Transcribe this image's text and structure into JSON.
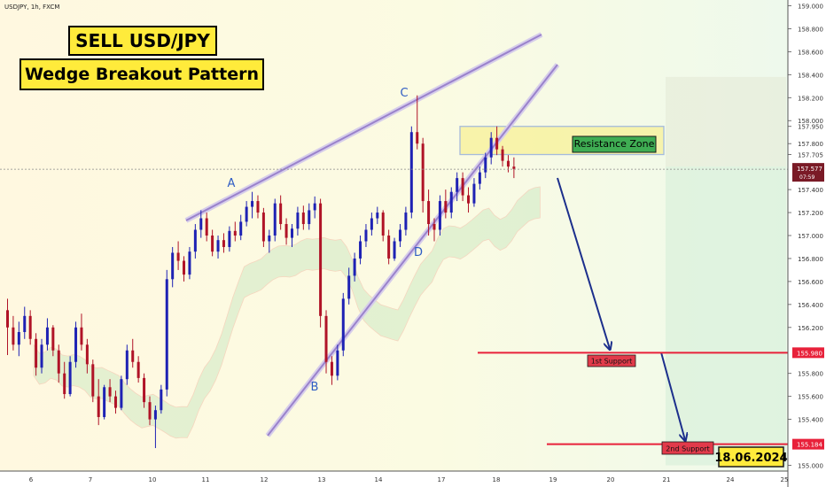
{
  "header": {
    "symbol_info": "USDJPY, 1h, FXCM"
  },
  "labels": {
    "title": "SELL USD/JPY",
    "subtitle": "Wedge Breakout Pattern",
    "resistance": "Resistance Zone",
    "support1": "1st Support",
    "support2": "2nd Support",
    "date": "18.06.2024",
    "point_a": "A",
    "point_b": "B",
    "point_c": "C",
    "point_d": "D"
  },
  "colors": {
    "bull": "#1e22b4",
    "bear": "#b01327",
    "support_line": "#e8213a",
    "wedge_line": "#9a82cc",
    "arrow": "#1c2f8c",
    "point_label": "#2e5cc4",
    "current_price_bg": "#7a1a26"
  },
  "chart_data": {
    "type": "candlestick",
    "title": "SELL USD/JPY",
    "subtitle": "Wedge Breakout Pattern",
    "x_tick_labels": [
      "6",
      "7",
      "10",
      "11",
      "12",
      "13",
      "14",
      "17",
      "18",
      "19",
      "20",
      "21",
      "24",
      "25"
    ],
    "y_tick_labels": [
      "159.000",
      "158.800",
      "158.600",
      "158.400",
      "158.200",
      "158.000",
      "157.950",
      "157.800",
      "157.705",
      "157.400",
      "157.200",
      "157.000",
      "156.800",
      "156.600",
      "156.400",
      "156.200",
      "155.800",
      "155.600",
      "155.400",
      "155.000"
    ],
    "ylim": [
      154.95,
      159.05
    ],
    "current_price": {
      "value": "157.577",
      "countdown": "07:59"
    },
    "resistance_zone": {
      "low": 157.705,
      "high": 157.95,
      "label": "Resistance Zone"
    },
    "supports": [
      {
        "label": "1st Support",
        "value": 155.98
      },
      {
        "label": "2nd Support",
        "value": 155.184
      }
    ],
    "wedge_points": [
      {
        "label": "A",
        "value": 157.42
      },
      {
        "label": "B",
        "value": 155.72
      },
      {
        "label": "C",
        "value": 158.22
      },
      {
        "label": "D",
        "value": 156.95
      }
    ],
    "bars": [
      [
        156.35,
        156.45,
        155.96,
        156.2
      ],
      [
        156.2,
        156.3,
        156.0,
        156.05
      ],
      [
        156.05,
        156.25,
        155.95,
        156.16
      ],
      [
        156.16,
        156.38,
        156.1,
        156.3
      ],
      [
        156.3,
        156.35,
        156.05,
        156.1
      ],
      [
        156.1,
        156.15,
        155.78,
        155.85
      ],
      [
        155.85,
        156.1,
        155.8,
        156.05
      ],
      [
        156.05,
        156.28,
        156.0,
        156.2
      ],
      [
        156.2,
        156.22,
        155.95,
        156.0
      ],
      [
        156.0,
        156.05,
        155.72,
        155.8
      ],
      [
        155.8,
        155.9,
        155.58,
        155.62
      ],
      [
        155.62,
        155.95,
        155.6,
        155.9
      ],
      [
        155.9,
        156.25,
        155.85,
        156.2
      ],
      [
        156.2,
        156.32,
        156.0,
        156.05
      ],
      [
        156.05,
        156.1,
        155.8,
        155.88
      ],
      [
        155.88,
        155.92,
        155.55,
        155.6
      ],
      [
        155.6,
        155.75,
        155.35,
        155.42
      ],
      [
        155.42,
        155.7,
        155.4,
        155.68
      ],
      [
        155.68,
        155.75,
        155.55,
        155.6
      ],
      [
        155.6,
        155.65,
        155.45,
        155.5
      ],
      [
        155.5,
        155.78,
        155.48,
        155.75
      ],
      [
        155.75,
        156.05,
        155.7,
        156.0
      ],
      [
        156.0,
        156.1,
        155.85,
        155.9
      ],
      [
        155.9,
        155.95,
        155.72,
        155.76
      ],
      [
        155.76,
        155.8,
        155.5,
        155.55
      ],
      [
        155.55,
        155.6,
        155.35,
        155.4
      ],
      [
        155.4,
        155.52,
        155.15,
        155.48
      ],
      [
        155.48,
        155.7,
        155.45,
        155.66
      ],
      [
        155.66,
        156.7,
        155.6,
        156.62
      ],
      [
        156.62,
        156.9,
        156.55,
        156.85
      ],
      [
        156.85,
        156.95,
        156.7,
        156.78
      ],
      [
        156.78,
        156.82,
        156.6,
        156.66
      ],
      [
        156.66,
        156.9,
        156.62,
        156.86
      ],
      [
        156.86,
        157.1,
        156.8,
        157.05
      ],
      [
        157.05,
        157.22,
        156.98,
        157.15
      ],
      [
        157.15,
        157.2,
        156.95,
        157.0
      ],
      [
        157.0,
        157.05,
        156.82,
        156.86
      ],
      [
        156.86,
        157.0,
        156.8,
        156.96
      ],
      [
        156.96,
        157.02,
        156.85,
        156.9
      ],
      [
        156.9,
        157.08,
        156.86,
        157.04
      ],
      [
        157.04,
        157.12,
        156.95,
        157.0
      ],
      [
        157.0,
        157.18,
        156.96,
        157.12
      ],
      [
        157.12,
        157.3,
        157.08,
        157.25
      ],
      [
        157.25,
        157.38,
        157.15,
        157.3
      ],
      [
        157.3,
        157.35,
        157.15,
        157.2
      ],
      [
        157.2,
        157.24,
        156.9,
        156.95
      ],
      [
        156.95,
        157.05,
        156.85,
        157.0
      ],
      [
        157.0,
        157.32,
        156.95,
        157.28
      ],
      [
        157.28,
        157.35,
        157.05,
        157.1
      ],
      [
        157.1,
        157.15,
        156.92,
        156.98
      ],
      [
        156.98,
        157.1,
        156.9,
        157.06
      ],
      [
        157.06,
        157.25,
        157.0,
        157.2
      ],
      [
        157.2,
        157.26,
        157.05,
        157.1
      ],
      [
        157.1,
        157.28,
        157.05,
        157.22
      ],
      [
        157.22,
        157.34,
        157.15,
        157.28
      ],
      [
        157.28,
        157.32,
        156.2,
        156.3
      ],
      [
        156.3,
        156.35,
        155.8,
        155.9
      ],
      [
        155.9,
        155.95,
        155.7,
        155.78
      ],
      [
        155.78,
        156.05,
        155.74,
        156.0
      ],
      [
        156.0,
        156.5,
        155.95,
        156.45
      ],
      [
        156.45,
        156.72,
        156.4,
        156.65
      ],
      [
        156.65,
        156.85,
        156.6,
        156.8
      ],
      [
        156.8,
        157.0,
        156.75,
        156.95
      ],
      [
        156.95,
        157.1,
        156.9,
        157.05
      ],
      [
        157.05,
        157.2,
        157.0,
        157.15
      ],
      [
        157.15,
        157.25,
        157.1,
        157.2
      ],
      [
        157.2,
        157.22,
        156.95,
        157.0
      ],
      [
        157.0,
        157.05,
        156.75,
        156.8
      ],
      [
        156.8,
        156.98,
        156.78,
        156.95
      ],
      [
        156.95,
        157.1,
        156.9,
        157.05
      ],
      [
        157.05,
        157.25,
        157.0,
        157.2
      ],
      [
        157.2,
        157.95,
        157.15,
        157.9
      ],
      [
        157.9,
        158.22,
        157.75,
        157.8
      ],
      [
        157.8,
        157.85,
        157.2,
        157.3
      ],
      [
        157.3,
        157.4,
        157.0,
        157.1
      ],
      [
        157.1,
        157.15,
        156.95,
        157.05
      ],
      [
        157.05,
        157.35,
        157.0,
        157.3
      ],
      [
        157.3,
        157.4,
        157.15,
        157.2
      ],
      [
        157.2,
        157.42,
        157.15,
        157.38
      ],
      [
        157.38,
        157.55,
        157.3,
        157.5
      ],
      [
        157.5,
        157.55,
        157.3,
        157.35
      ],
      [
        157.35,
        157.42,
        157.2,
        157.28
      ],
      [
        157.28,
        157.5,
        157.25,
        157.45
      ],
      [
        157.45,
        157.6,
        157.4,
        157.55
      ],
      [
        157.55,
        157.72,
        157.5,
        157.68
      ],
      [
        157.68,
        157.9,
        157.62,
        157.85
      ],
      [
        157.85,
        157.95,
        157.7,
        157.75
      ],
      [
        157.75,
        157.78,
        157.6,
        157.65
      ],
      [
        157.65,
        157.7,
        157.55,
        157.6
      ],
      [
        157.6,
        157.68,
        157.5,
        157.58
      ]
    ]
  }
}
